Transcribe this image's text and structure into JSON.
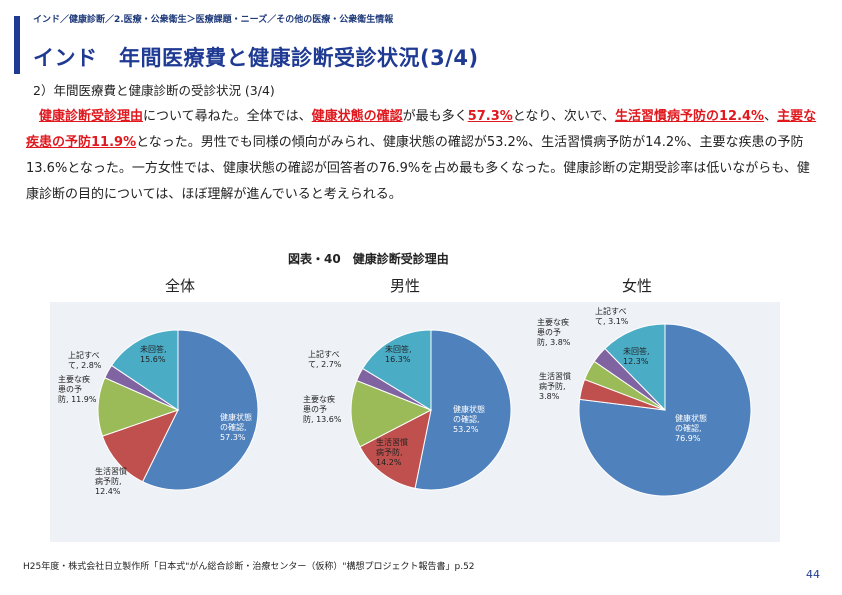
{
  "breadcrumb": "インド／健康診断／2.医療・公衆衛生＞医療課題・ニーズ／その他の医療・公衆衛生情報",
  "title": "インド　年間医療費と健康診断受診状況(3/4)",
  "subtitle": "2）年間医療費と健康診断の受診状況 (3/4)",
  "body": {
    "seg1": "健康診断受診理由",
    "seg2": "について尋ねた。全体では、",
    "seg3": "健康状態の確認",
    "seg4": "が最も多く",
    "seg5": "57.3%",
    "seg6": "となり、次いで、",
    "seg7": "生活習慣病予防の12.4%",
    "seg8": "、",
    "seg9": "主要な疾患の予防11.9%",
    "seg10": "となった。男性でも同様の傾向がみられ、健康状態の確認が53.2%、生活習慣病予防が14.2%、主要な疾患の予防13.6%となった。一方女性では、健康状態の確認が回答者の76.9%を占め最も多くなった。健康診断の定期受診率は低いながらも、健康診断の目的については、ほぼ理解が進んでいると考えられる。"
  },
  "source": "H25年度・株式会社日立製作所「日本式\"がん総合診断・治療センター（仮称）\"構想プロジェクト報告書」p.52",
  "page_number": "44",
  "colors": {
    "health_check": "#4f81bd",
    "lifestyle": "#c0504d",
    "major_disease": "#9bbb59",
    "all_above": "#8064a2",
    "no_answer": "#4bacc6",
    "title_blue": "#1f3a93",
    "highlight_red": "#e0191f"
  },
  "chart_data": {
    "type": "pie",
    "title": "図表・40　健康診断受診理由",
    "charts": [
      {
        "name": "全体",
        "slices": [
          {
            "label": "健康状態の確認",
            "value": 57.3,
            "label_text": "健康状態\nの確認,\n57.3%"
          },
          {
            "label": "生活習慣病予防",
            "value": 12.4,
            "label_text": "生活習慣\n病予防,\n12.4%"
          },
          {
            "label": "主要な疾患の予防",
            "value": 11.9,
            "label_text": "主要な疾\n患の予\n防, 11.9%"
          },
          {
            "label": "上記すべて",
            "value": 2.8,
            "label_text": "上記すべ\nて, 2.8%"
          },
          {
            "label": "未回答",
            "value": 15.6,
            "label_text": "未回答,\n15.6%"
          }
        ]
      },
      {
        "name": "男性",
        "slices": [
          {
            "label": "健康状態の確認",
            "value": 53.2,
            "label_text": "健康状態\nの確認,\n53.2%"
          },
          {
            "label": "生活習慣病予防",
            "value": 14.2,
            "label_text": "生活習慣\n病予防,\n14.2%"
          },
          {
            "label": "主要な疾患の予防",
            "value": 13.6,
            "label_text": "主要な疾\n患の予\n防, 13.6%"
          },
          {
            "label": "上記すべて",
            "value": 2.7,
            "label_text": "上記すべ\nて, 2.7%"
          },
          {
            "label": "未回答",
            "value": 16.3,
            "label_text": "未回答,\n16.3%"
          }
        ]
      },
      {
        "name": "女性",
        "slices": [
          {
            "label": "健康状態の確認",
            "value": 76.9,
            "label_text": "健康状態\nの確認,\n76.9%"
          },
          {
            "label": "生活習慣病予防",
            "value": 3.8,
            "label_text": "生活習慣\n病予防,\n3.8%"
          },
          {
            "label": "主要な疾患の予防",
            "value": 3.8,
            "label_text": "主要な疾\n患の予\n防, 3.8%"
          },
          {
            "label": "上記すべて",
            "value": 3.1,
            "label_text": "上記すべ\nて, 3.1%"
          },
          {
            "label": "未回答",
            "value": 12.3,
            "label_text": "未回答,\n12.3%"
          }
        ]
      }
    ]
  }
}
